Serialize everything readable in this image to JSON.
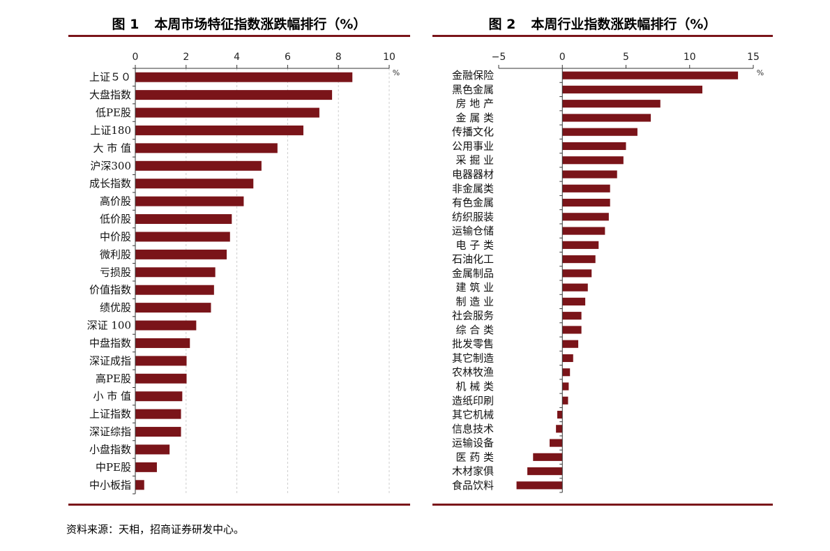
{
  "panel1": {
    "fig_label": "图 1",
    "fig_title": "本周市场特征指数涨跌幅排行（%）"
  },
  "panel2": {
    "fig_label": "图 2",
    "fig_title": "本周行业指数涨跌幅排行（%）"
  },
  "source": "资料来源：天相，招商证券研发中心。",
  "colors": {
    "bar": "#7a1419",
    "rule": "#7a1419",
    "grid": "#cccccc"
  },
  "chart_data": [
    {
      "type": "bar",
      "orientation": "horizontal",
      "title": "本周市场特征指数涨跌幅排行（%）",
      "unit": "%",
      "xlim": [
        0,
        10
      ],
      "xticks": [
        0,
        2,
        4,
        6,
        8,
        10
      ],
      "grid": true,
      "categories": [
        "上证５０",
        "大盘指数",
        "低PE股",
        "上证180",
        "大 市 值",
        "沪深300",
        "成长指数",
        "高价股",
        "低价股",
        "中价股",
        "微利股",
        "亏损股",
        "价值指数",
        "绩优股",
        "深证 100",
        "中盘指数",
        "深证成指",
        "高PE股",
        "小 市 值",
        "上证指数",
        "深证综指",
        "小盘指数",
        "中PE股",
        "中小板指"
      ],
      "values": [
        8.55,
        7.75,
        7.25,
        6.62,
        5.6,
        4.97,
        4.65,
        4.27,
        3.8,
        3.73,
        3.6,
        3.15,
        3.1,
        2.98,
        2.4,
        2.15,
        2.02,
        2.02,
        1.85,
        1.8,
        1.8,
        1.35,
        0.85,
        0.35
      ]
    },
    {
      "type": "bar",
      "orientation": "horizontal",
      "title": "本周行业指数涨跌幅排行（%）",
      "unit": "%",
      "xlim": [
        -5,
        15
      ],
      "xticks": [
        -5,
        0,
        5,
        10,
        15
      ],
      "grid": false,
      "categories": [
        "金融保险",
        "黑色金属",
        "房 地 产",
        "金 属 类",
        "传播文化",
        "公用事业",
        "采 掘 业",
        "电器器材",
        "非金属类",
        "有色金属",
        "纺织服装",
        "运输仓储",
        "电 子 类",
        "石油化工",
        "金属制品",
        "建 筑 业",
        "制 造 业",
        "社会服务",
        "综 合 类",
        "批发零售",
        "其它制造",
        "农林牧渔",
        "机 械 类",
        "造纸印刷",
        "其它机械",
        "信息技术",
        "运输设备",
        "医 药 类",
        "木材家俱",
        "食品饮料"
      ],
      "values": [
        13.8,
        11.0,
        7.7,
        6.95,
        5.9,
        5.0,
        4.8,
        4.3,
        3.75,
        3.75,
        3.65,
        3.35,
        2.85,
        2.6,
        2.3,
        2.0,
        1.8,
        1.5,
        1.5,
        1.25,
        0.85,
        0.6,
        0.5,
        0.45,
        -0.4,
        -0.5,
        -1.0,
        -2.3,
        -2.75,
        -3.6
      ]
    }
  ]
}
